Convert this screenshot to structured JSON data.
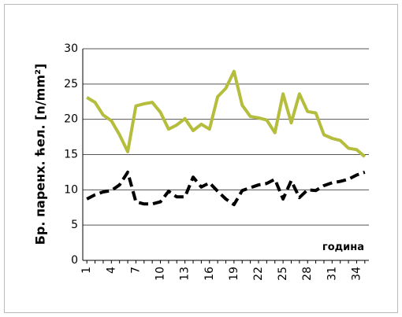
{
  "chart_data": {
    "type": "line",
    "y_label": "Бр. паренх. ћел. [n/mm²]",
    "x_label": "година",
    "categories": [
      "1",
      null,
      null,
      "4",
      null,
      null,
      "7",
      null,
      null,
      "10",
      null,
      null,
      "13",
      null,
      null,
      "16",
      null,
      null,
      "19",
      null,
      null,
      "22",
      null,
      null,
      "25",
      null,
      null,
      "28",
      null,
      null,
      "31",
      null,
      null,
      "34",
      null
    ],
    "series": [
      {
        "color": "#b5bd3d",
        "dash": false,
        "values": [
          23.1,
          22.4,
          20.6,
          19.8,
          17.8,
          15.4,
          21.9,
          22.2,
          22.4,
          21,
          18.6,
          19.2,
          20.1,
          18.4,
          19.3,
          18.6,
          23.2,
          24.4,
          26.8,
          22,
          20.4,
          20.2,
          19.9,
          18.1,
          23.6,
          19.5,
          23.6,
          21.1,
          20.9,
          17.8,
          17.3,
          17,
          15.9,
          15.7,
          14.7
        ]
      },
      {
        "color": "#000000",
        "dash": true,
        "values": [
          8.7,
          9.3,
          9.7,
          9.9,
          10.7,
          12.5,
          8.3,
          8,
          8,
          8.3,
          9.8,
          9,
          9,
          11.8,
          10.4,
          11,
          9.8,
          8.7,
          7.9,
          9.9,
          10.3,
          10.7,
          10.9,
          11.5,
          8.7,
          11.3,
          8.9,
          10,
          9.9,
          10.6,
          11,
          11.2,
          11.5,
          12.1,
          12.5
        ]
      }
    ],
    "ylim": [
      0,
      30
    ],
    "yticks": [
      0,
      5,
      10,
      15,
      20,
      25,
      30
    ],
    "grid": true
  }
}
